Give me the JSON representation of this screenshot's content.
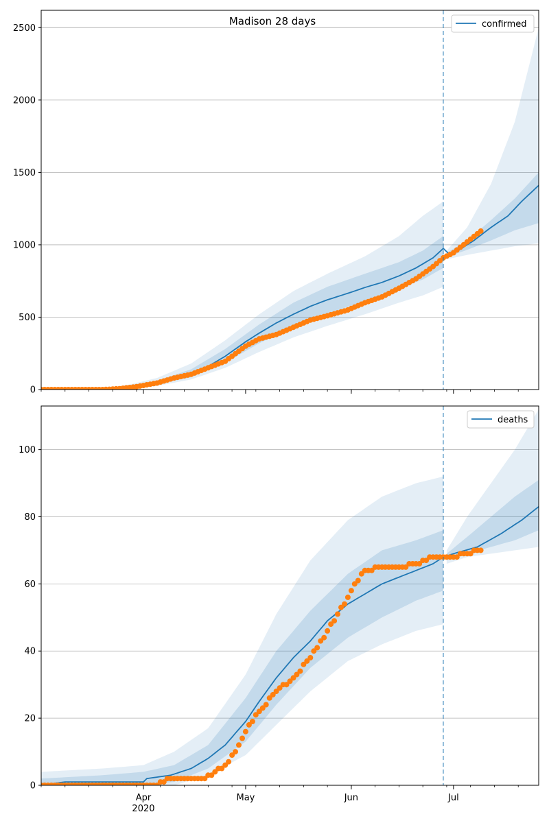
{
  "chart_data": [
    {
      "type": "line",
      "title": "Madison 28 days",
      "legend": {
        "label": "confirmed",
        "position": "top-right"
      },
      "x_range": [
        "2020-03-02",
        "2020-07-26"
      ],
      "x_ticks": [
        {
          "date": "2020-04-01",
          "label": "Apr",
          "sublabel": "2020"
        },
        {
          "date": "2020-05-01",
          "label": "May",
          "sublabel": ""
        },
        {
          "date": "2020-06-01",
          "label": "Jun",
          "sublabel": ""
        },
        {
          "date": "2020-07-01",
          "label": "Jul",
          "sublabel": ""
        }
      ],
      "ylim": [
        0,
        2620
      ],
      "y_ticks": [
        0,
        500,
        1000,
        1500,
        2000,
        2500
      ],
      "grid": "horizontal",
      "forecast_start": "2020-06-28",
      "line_color": "#1f77b4",
      "marker_color": "#ff7f0e",
      "model_median": [
        [
          "2020-03-02",
          0
        ],
        [
          "2020-03-20",
          0
        ],
        [
          "2020-03-25",
          8
        ],
        [
          "2020-03-30",
          20
        ],
        [
          "2020-04-05",
          45
        ],
        [
          "2020-04-10",
          80
        ],
        [
          "2020-04-15",
          110
        ],
        [
          "2020-04-20",
          160
        ],
        [
          "2020-04-25",
          230
        ],
        [
          "2020-05-01",
          330
        ],
        [
          "2020-05-05",
          390
        ],
        [
          "2020-05-10",
          460
        ],
        [
          "2020-05-15",
          520
        ],
        [
          "2020-05-20",
          575
        ],
        [
          "2020-05-25",
          620
        ],
        [
          "2020-05-31",
          665
        ],
        [
          "2020-06-05",
          705
        ],
        [
          "2020-06-10",
          740
        ],
        [
          "2020-06-15",
          785
        ],
        [
          "2020-06-20",
          840
        ],
        [
          "2020-06-25",
          910
        ],
        [
          "2020-06-28",
          975
        ],
        [
          "2020-06-30",
          930
        ],
        [
          "2020-07-03",
          970
        ],
        [
          "2020-07-07",
          1030
        ],
        [
          "2020-07-12",
          1120
        ],
        [
          "2020-07-17",
          1200
        ],
        [
          "2020-07-21",
          1300
        ],
        [
          "2020-07-26",
          1410
        ]
      ],
      "band_outer": [
        [
          "2020-03-02",
          0,
          0
        ],
        [
          "2020-03-20",
          0,
          5
        ],
        [
          "2020-03-28",
          5,
          35
        ],
        [
          "2020-04-05",
          25,
          80
        ],
        [
          "2020-04-15",
          70,
          180
        ],
        [
          "2020-04-25",
          150,
          340
        ],
        [
          "2020-05-05",
          260,
          520
        ],
        [
          "2020-05-15",
          360,
          680
        ],
        [
          "2020-05-25",
          440,
          800
        ],
        [
          "2020-06-05",
          520,
          920
        ],
        [
          "2020-06-15",
          600,
          1060
        ],
        [
          "2020-06-22",
          650,
          1200
        ],
        [
          "2020-06-28",
          710,
          1300
        ],
        [
          "2020-06-29",
          900,
          960
        ],
        [
          "2020-07-05",
          930,
          1120
        ],
        [
          "2020-07-12",
          960,
          1420
        ],
        [
          "2020-07-19",
          990,
          1850
        ],
        [
          "2020-07-26",
          1010,
          2500
        ]
      ],
      "band_inner": [
        [
          "2020-03-02",
          0,
          0
        ],
        [
          "2020-03-20",
          0,
          3
        ],
        [
          "2020-03-28",
          8,
          25
        ],
        [
          "2020-04-05",
          35,
          60
        ],
        [
          "2020-04-15",
          85,
          140
        ],
        [
          "2020-04-25",
          185,
          280
        ],
        [
          "2020-05-05",
          320,
          450
        ],
        [
          "2020-05-15",
          430,
          600
        ],
        [
          "2020-05-25",
          525,
          710
        ],
        [
          "2020-06-05",
          610,
          800
        ],
        [
          "2020-06-15",
          700,
          880
        ],
        [
          "2020-06-22",
          760,
          960
        ],
        [
          "2020-06-28",
          840,
          1060
        ],
        [
          "2020-06-29",
          915,
          945
        ],
        [
          "2020-07-05",
          965,
          1030
        ],
        [
          "2020-07-12",
          1030,
          1170
        ],
        [
          "2020-07-19",
          1100,
          1320
        ],
        [
          "2020-07-26",
          1150,
          1500
        ]
      ],
      "observed": [
        [
          "2020-03-02",
          0
        ],
        [
          "2020-03-20",
          0
        ],
        [
          "2020-03-25",
          6
        ],
        [
          "2020-03-30",
          20
        ],
        [
          "2020-04-05",
          45
        ],
        [
          "2020-04-10",
          80
        ],
        [
          "2020-04-15",
          105
        ],
        [
          "2020-04-20",
          150
        ],
        [
          "2020-04-25",
          195
        ],
        [
          "2020-05-01",
          300
        ],
        [
          "2020-05-05",
          350
        ],
        [
          "2020-05-10",
          380
        ],
        [
          "2020-05-15",
          430
        ],
        [
          "2020-05-20",
          480
        ],
        [
          "2020-05-25",
          510
        ],
        [
          "2020-05-31",
          550
        ],
        [
          "2020-06-05",
          600
        ],
        [
          "2020-06-10",
          640
        ],
        [
          "2020-06-15",
          700
        ],
        [
          "2020-06-20",
          765
        ],
        [
          "2020-06-25",
          850
        ],
        [
          "2020-06-28",
          910
        ],
        [
          "2020-07-01",
          945
        ],
        [
          "2020-07-05",
          1020
        ],
        [
          "2020-07-09",
          1095
        ]
      ]
    },
    {
      "type": "line",
      "title": "",
      "legend": {
        "label": "deaths",
        "position": "top-right"
      },
      "x_range": [
        "2020-03-02",
        "2020-07-26"
      ],
      "x_ticks": [
        {
          "date": "2020-04-01",
          "label": "Apr",
          "sublabel": "2020"
        },
        {
          "date": "2020-05-01",
          "label": "May",
          "sublabel": ""
        },
        {
          "date": "2020-06-01",
          "label": "Jun",
          "sublabel": ""
        },
        {
          "date": "2020-07-01",
          "label": "Jul",
          "sublabel": ""
        }
      ],
      "ylim": [
        0,
        113
      ],
      "y_ticks": [
        0,
        20,
        40,
        60,
        80,
        100
      ],
      "grid": "horizontal",
      "forecast_start": "2020-06-28",
      "line_color": "#1f77b4",
      "marker_color": "#ff7f0e",
      "model_median": [
        [
          "2020-03-02",
          0
        ],
        [
          "2020-03-09",
          1
        ],
        [
          "2020-04-01",
          1
        ],
        [
          "2020-04-02",
          2
        ],
        [
          "2020-04-09",
          3
        ],
        [
          "2020-04-15",
          5
        ],
        [
          "2020-04-20",
          8
        ],
        [
          "2020-04-25",
          12
        ],
        [
          "2020-05-01",
          19
        ],
        [
          "2020-05-05",
          25
        ],
        [
          "2020-05-10",
          32
        ],
        [
          "2020-05-15",
          38
        ],
        [
          "2020-05-20",
          43
        ],
        [
          "2020-05-25",
          49
        ],
        [
          "2020-05-31",
          54
        ],
        [
          "2020-06-05",
          57
        ],
        [
          "2020-06-10",
          60
        ],
        [
          "2020-06-15",
          62
        ],
        [
          "2020-06-20",
          64
        ],
        [
          "2020-06-25",
          66
        ],
        [
          "2020-06-28",
          68
        ],
        [
          "2020-07-01",
          69
        ],
        [
          "2020-07-08",
          71
        ],
        [
          "2020-07-15",
          75
        ],
        [
          "2020-07-21",
          79
        ],
        [
          "2020-07-26",
          83
        ]
      ],
      "band_outer": [
        [
          "2020-03-02",
          0,
          4
        ],
        [
          "2020-03-20",
          0,
          5
        ],
        [
          "2020-04-01",
          0,
          6
        ],
        [
          "2020-04-10",
          0,
          10
        ],
        [
          "2020-04-20",
          3,
          17
        ],
        [
          "2020-05-01",
          9,
          33
        ],
        [
          "2020-05-10",
          18,
          51
        ],
        [
          "2020-05-20",
          28,
          67
        ],
        [
          "2020-05-31",
          37,
          79
        ],
        [
          "2020-06-10",
          42,
          86
        ],
        [
          "2020-06-20",
          46,
          90
        ],
        [
          "2020-06-28",
          48,
          92
        ],
        [
          "2020-06-29",
          66,
          70
        ],
        [
          "2020-07-05",
          68,
          80
        ],
        [
          "2020-07-12",
          69,
          90
        ],
        [
          "2020-07-19",
          70,
          100
        ],
        [
          "2020-07-26",
          71,
          112
        ]
      ],
      "band_inner": [
        [
          "2020-03-02",
          0,
          2
        ],
        [
          "2020-03-20",
          0,
          3
        ],
        [
          "2020-04-01",
          0,
          4
        ],
        [
          "2020-04-10",
          1,
          6
        ],
        [
          "2020-04-20",
          5,
          12
        ],
        [
          "2020-05-01",
          13,
          26
        ],
        [
          "2020-05-10",
          24,
          40
        ],
        [
          "2020-05-20",
          35,
          52
        ],
        [
          "2020-05-31",
          44,
          63
        ],
        [
          "2020-06-10",
          50,
          70
        ],
        [
          "2020-06-20",
          55,
          73
        ],
        [
          "2020-06-28",
          58,
          76
        ],
        [
          "2020-06-29",
          67,
          69
        ],
        [
          "2020-07-05",
          69,
          74
        ],
        [
          "2020-07-12",
          71,
          80
        ],
        [
          "2020-07-19",
          73,
          86
        ],
        [
          "2020-07-26",
          76,
          91
        ]
      ],
      "observed": [
        [
          "2020-03-02",
          0
        ],
        [
          "2020-04-05",
          0
        ],
        [
          "2020-04-07",
          1
        ],
        [
          "2020-04-09",
          2
        ],
        [
          "2020-04-19",
          2
        ],
        [
          "2020-04-21",
          3
        ],
        [
          "2020-04-25",
          6
        ],
        [
          "2020-04-28",
          10
        ],
        [
          "2020-05-01",
          16
        ],
        [
          "2020-05-05",
          22
        ],
        [
          "2020-05-10",
          28
        ],
        [
          "2020-05-15",
          32
        ],
        [
          "2020-05-20",
          38
        ],
        [
          "2020-05-25",
          46
        ],
        [
          "2020-05-31",
          56
        ],
        [
          "2020-06-02",
          60
        ],
        [
          "2020-06-05",
          64
        ],
        [
          "2020-06-10",
          65
        ],
        [
          "2020-06-15",
          65
        ],
        [
          "2020-06-20",
          66
        ],
        [
          "2020-06-25",
          68
        ],
        [
          "2020-07-01",
          68
        ],
        [
          "2020-07-05",
          69
        ],
        [
          "2020-07-09",
          70
        ]
      ]
    }
  ]
}
